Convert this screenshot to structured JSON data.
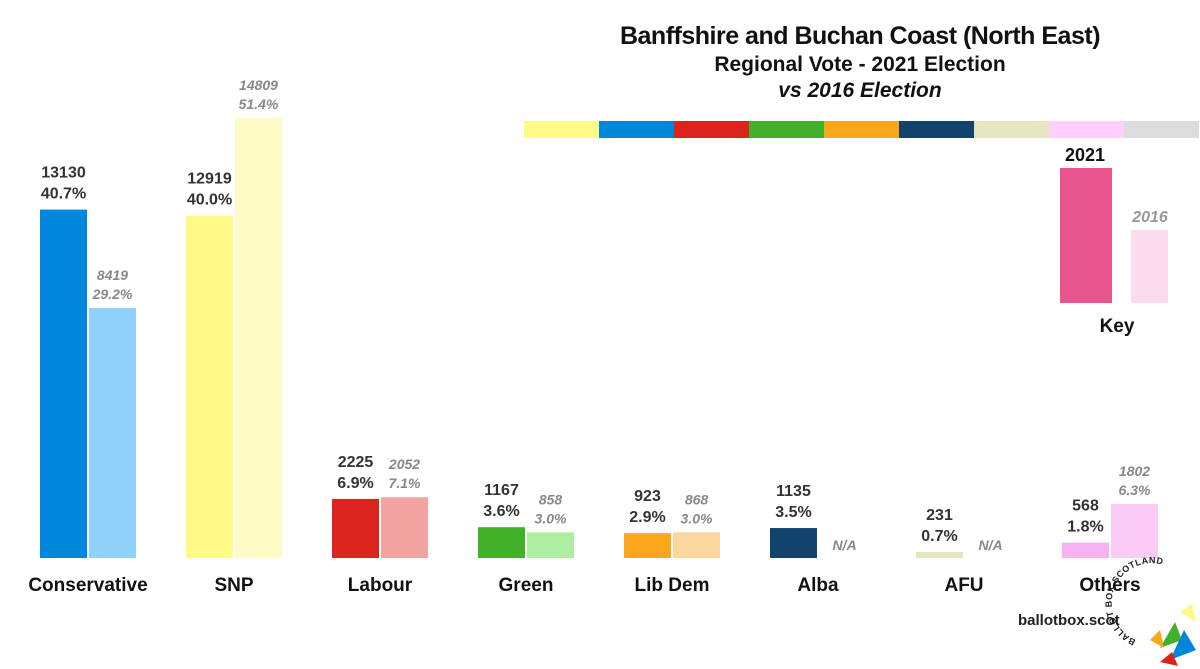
{
  "title": {
    "line1": "Banffshire and Buchan Coast (North East)",
    "line2": "Regional Vote - 2021 Election",
    "line3": "vs 2016 Election"
  },
  "palette": [
    "#fefa87",
    "#0087dc",
    "#dc241f",
    "#43b02a",
    "#faa61a",
    "#12436d",
    "#e5e5c2",
    "#ffd0fb",
    "#dcdcdc"
  ],
  "chart_data": {
    "type": "bar",
    "title": "Banffshire and Buchan Coast (North East) Regional Vote - 2021 Election vs 2016 Election",
    "categories": [
      "Conservative",
      "SNP",
      "Labour",
      "Green",
      "Lib Dem",
      "Alba",
      "AFU",
      "Others"
    ],
    "series": [
      {
        "name": "2021",
        "votes": [
          13130,
          12919,
          2225,
          1167,
          923,
          1135,
          231,
          568
        ],
        "percent": [
          40.7,
          40.0,
          6.9,
          3.6,
          2.9,
          3.5,
          0.7,
          1.8
        ],
        "labels_votes": [
          "13130",
          "12919",
          "2225",
          "1167",
          "923",
          "1135",
          "231",
          "568"
        ],
        "labels_pct": [
          "40.7%",
          "40.0%",
          "6.9%",
          "3.6%",
          "2.9%",
          "3.5%",
          "0.7%",
          "1.8%"
        ],
        "colors": [
          "#0087dc",
          "#fefa87",
          "#dc241f",
          "#43b02a",
          "#faa61a",
          "#12436d",
          "#e5e5c2",
          "#f7b1f0"
        ]
      },
      {
        "name": "2016",
        "votes": [
          8419,
          14809,
          2052,
          858,
          868,
          null,
          null,
          1802
        ],
        "percent": [
          29.2,
          51.4,
          7.1,
          3.0,
          3.0,
          null,
          null,
          6.3
        ],
        "labels_votes": [
          "8419",
          "14809",
          "2052",
          "858",
          "868",
          "N/A",
          "N/A",
          "1802"
        ],
        "labels_pct": [
          "29.2%",
          "51.4%",
          "7.1%",
          "3.0%",
          "3.0%",
          "",
          "",
          "6.3%"
        ],
        "colors": [
          "#8fd1fb",
          "#fffbc7",
          "#f3a3a0",
          "#aeeea0",
          "#fbd79e",
          "#12436d",
          "#e5e5c2",
          "#facbf7"
        ]
      }
    ],
    "ylabel": "",
    "xlabel": "",
    "ylim": [
      0,
      60
    ]
  },
  "key": {
    "label_2021": "2021",
    "label_2016": "2016",
    "title": "Key",
    "color_2021": "#e8558c",
    "color_2016": "#fcdcec"
  },
  "source": "ballotbox.scot",
  "logo_text": "BALLOT BOX SCOTLAND"
}
